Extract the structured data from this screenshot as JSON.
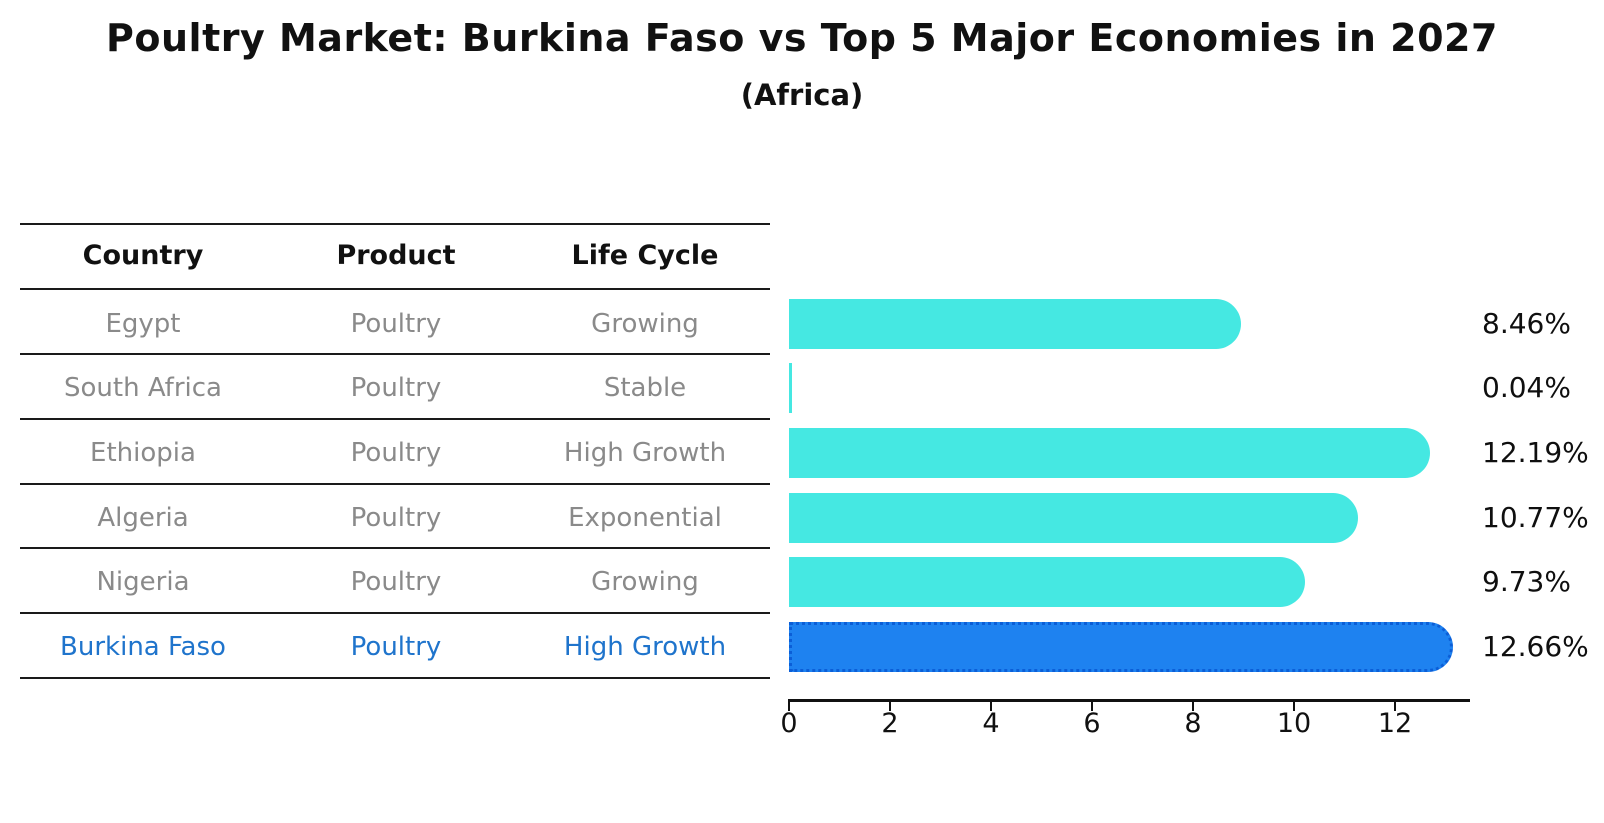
{
  "title": "Poultry Market: Burkina Faso vs Top 5 Major Economies in 2027",
  "subtitle": "(Africa)",
  "table": {
    "headers": {
      "country": "Country",
      "product": "Product",
      "life_cycle": "Life Cycle"
    },
    "row_text_color": "#8a8a8a",
    "highlight_text_color": "#1f74cc",
    "rows": [
      {
        "country": "Egypt",
        "product": "Poultry",
        "life_cycle": "Growing"
      },
      {
        "country": "South Africa",
        "product": "Poultry",
        "life_cycle": "Stable"
      },
      {
        "country": "Ethiopia",
        "product": "Poultry",
        "life_cycle": "High Growth"
      },
      {
        "country": "Algeria",
        "product": "Poultry",
        "life_cycle": "Exponential"
      },
      {
        "country": "Nigeria",
        "product": "Poultry",
        "life_cycle": "Growing"
      },
      {
        "country": "Burkina Faso",
        "product": "Poultry",
        "life_cycle": "High Growth"
      }
    ]
  },
  "chart_data": {
    "type": "bar",
    "orientation": "horizontal",
    "title": "Poultry Market: Burkina Faso vs Top 5 Major Economies in 2027",
    "subtitle": "(Africa)",
    "categories": [
      "Egypt",
      "South Africa",
      "Ethiopia",
      "Algeria",
      "Nigeria",
      "Burkina Faso"
    ],
    "values": [
      8.46,
      0.04,
      12.19,
      10.77,
      9.73,
      12.66
    ],
    "bar_labels": [
      "8.46%",
      "0.04%",
      "12.19%",
      "10.77%",
      "9.73%",
      "12.66%"
    ],
    "xlabel": "",
    "ylabel": "",
    "xlim": [
      0,
      13.3
    ],
    "xticks": [
      0,
      2,
      4,
      6,
      8,
      10,
      12
    ],
    "grid": false,
    "legend": "none",
    "bar_color": "#45e8e2",
    "highlight_index": 5,
    "highlight_color": "#1e82f0",
    "highlight_edge_color": "#0b5ed7"
  }
}
